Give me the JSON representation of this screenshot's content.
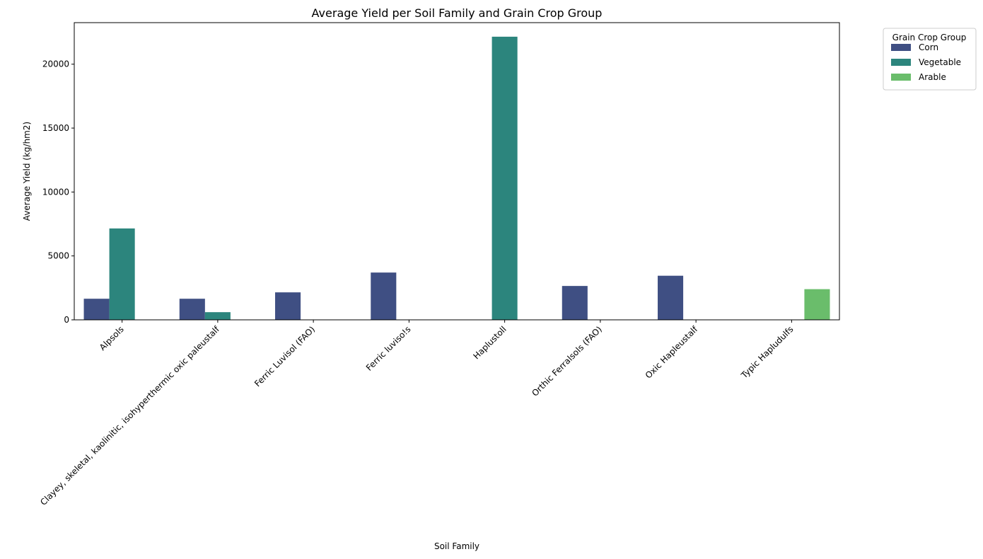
{
  "chart_data": {
    "type": "bar",
    "title": "Average Yield per Soil Family and Grain Crop Group",
    "xlabel": "Soil Family",
    "ylabel": "Average Yield (kg/hm2)",
    "categories": [
      "Alpsols",
      "Clayey, skeletal, kaolinitic, isohyperthermic oxic paleustalf",
      "Ferric Luvisol (FAO)",
      "Ferric luviso!s",
      "Haplustoll",
      "Orthic Ferralsols (FAO)",
      "Oxic Hapleustalf",
      "Typic Hapludulfs"
    ],
    "series": [
      {
        "name": "Corn",
        "color": "#3f4f83",
        "values": [
          1650,
          1650,
          2150,
          3700,
          null,
          2650,
          3450,
          null
        ]
      },
      {
        "name": "Vegetable",
        "color": "#2c857d",
        "values": [
          7150,
          600,
          null,
          null,
          22150,
          null,
          null,
          null
        ]
      },
      {
        "name": "Arable",
        "color": "#6abd6b",
        "values": [
          null,
          null,
          null,
          null,
          null,
          null,
          null,
          2400
        ]
      }
    ],
    "ylim": [
      0,
      23250
    ],
    "yticks": [
      0,
      5000,
      10000,
      15000,
      20000
    ],
    "grid": false,
    "legend": {
      "title": "Grain Crop Group",
      "position": "outside-top-right"
    }
  }
}
